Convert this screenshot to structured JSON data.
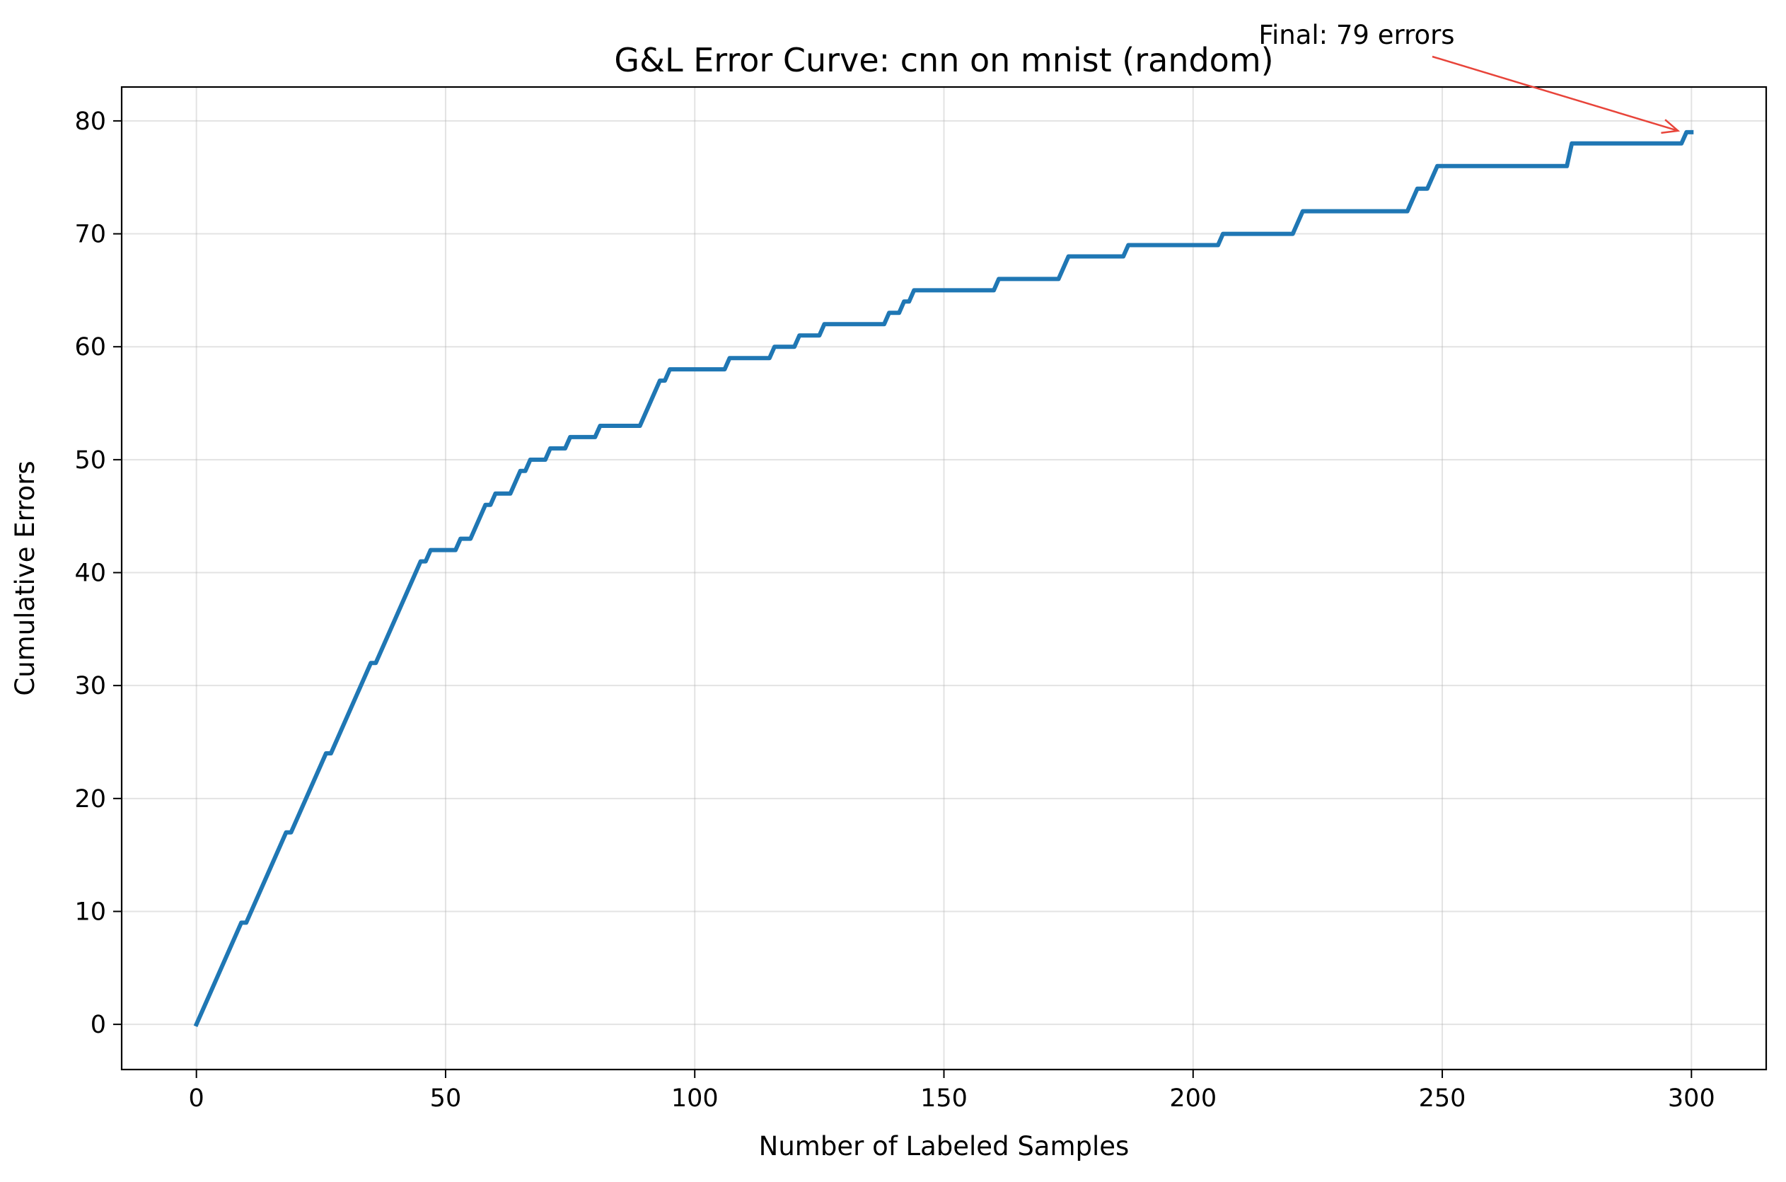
{
  "chart_data": {
    "type": "line",
    "title": "G&L Error Curve: cnn on mnist (random)",
    "xlabel": "Number of Labeled Samples",
    "ylabel": "Cumulative Errors",
    "xlim": [
      -15,
      315
    ],
    "ylim": [
      -4,
      83
    ],
    "xticks": [
      0,
      50,
      100,
      150,
      200,
      250,
      300
    ],
    "yticks": [
      0,
      10,
      20,
      30,
      40,
      50,
      60,
      70,
      80
    ],
    "grid": true,
    "line_color": "#1f77b4",
    "annotation_color": "#e8443a",
    "annotation": {
      "text": "Final: 79 errors",
      "x": 299,
      "y": 79
    },
    "series": [
      {
        "x": [
          0,
          9,
          10,
          18,
          19,
          26,
          27,
          35,
          36,
          45,
          46,
          47,
          52,
          53,
          55,
          58,
          59,
          60,
          63,
          65,
          66,
          67,
          70,
          71,
          74,
          75,
          80,
          81,
          89,
          93,
          94,
          95,
          106,
          107,
          115,
          116,
          120,
          121,
          125,
          126,
          138,
          139,
          141,
          142,
          143,
          144,
          160,
          161,
          173,
          175,
          186,
          187,
          205,
          206,
          220,
          222,
          243,
          245,
          247,
          249,
          275,
          276,
          298,
          299,
          300
        ],
        "y": [
          0,
          9,
          9,
          17,
          17,
          24,
          24,
          32,
          32,
          41,
          41,
          42,
          42,
          43,
          43,
          46,
          46,
          47,
          47,
          49,
          49,
          50,
          50,
          51,
          51,
          52,
          52,
          53,
          53,
          57,
          57,
          58,
          58,
          59,
          59,
          60,
          60,
          61,
          61,
          62,
          62,
          63,
          63,
          64,
          64,
          65,
          65,
          66,
          66,
          68,
          68,
          69,
          69,
          70,
          70,
          72,
          72,
          74,
          74,
          76,
          76,
          78,
          78,
          79,
          79
        ]
      }
    ]
  }
}
